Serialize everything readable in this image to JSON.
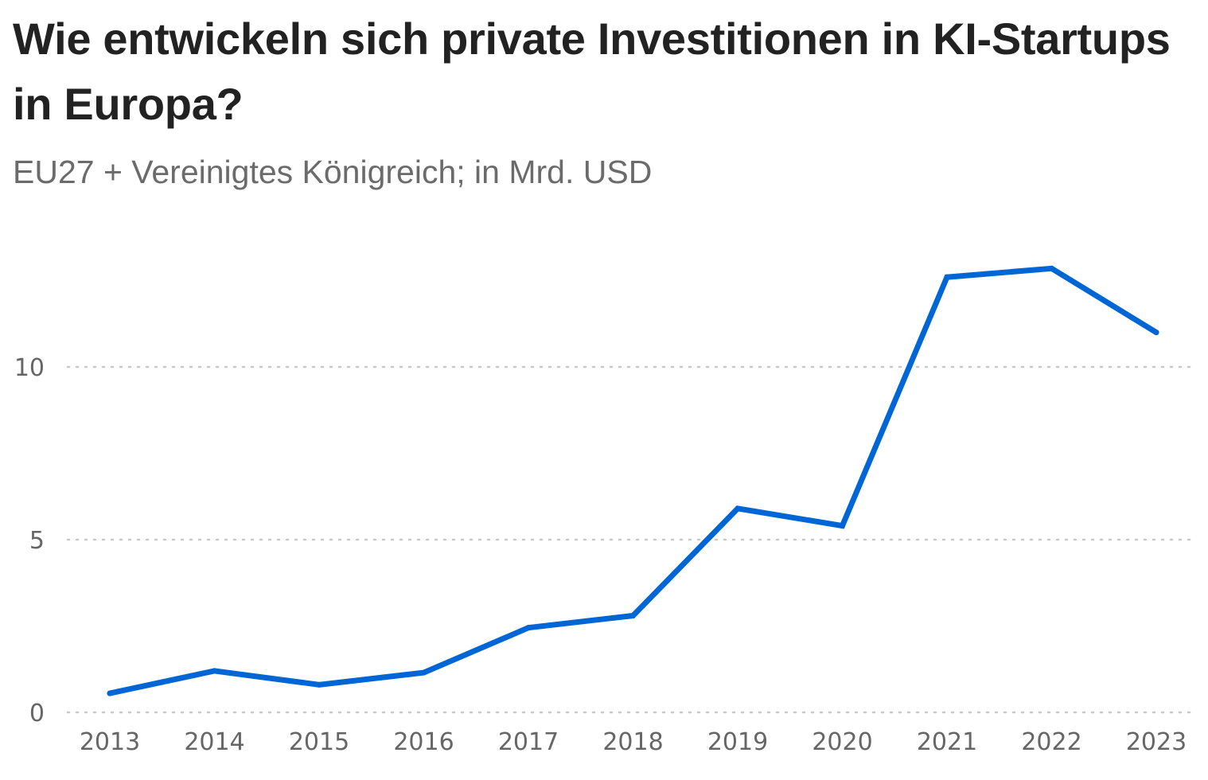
{
  "chart_data": {
    "type": "line",
    "title": "Wie entwickeln sich private Investitionen in KI-Startups in Europa?",
    "subtitle": "EU27 + Vereinigtes Königreich; in Mrd. USD",
    "xlabel": "",
    "ylabel": "",
    "x": [
      "2013",
      "2014",
      "2015",
      "2016",
      "2017",
      "2018",
      "2019",
      "2020",
      "2021",
      "2022",
      "2023"
    ],
    "series": [
      {
        "values": [
          0.55,
          1.2,
          0.8,
          1.15,
          2.45,
          2.8,
          5.9,
          5.4,
          12.6,
          12.85,
          11.0
        ],
        "color": "#0066d6"
      }
    ],
    "y_ticks": [
      0,
      5,
      10
    ],
    "ylim": [
      0,
      13
    ],
    "grid": true,
    "grid_style": "dotted horizontal"
  }
}
